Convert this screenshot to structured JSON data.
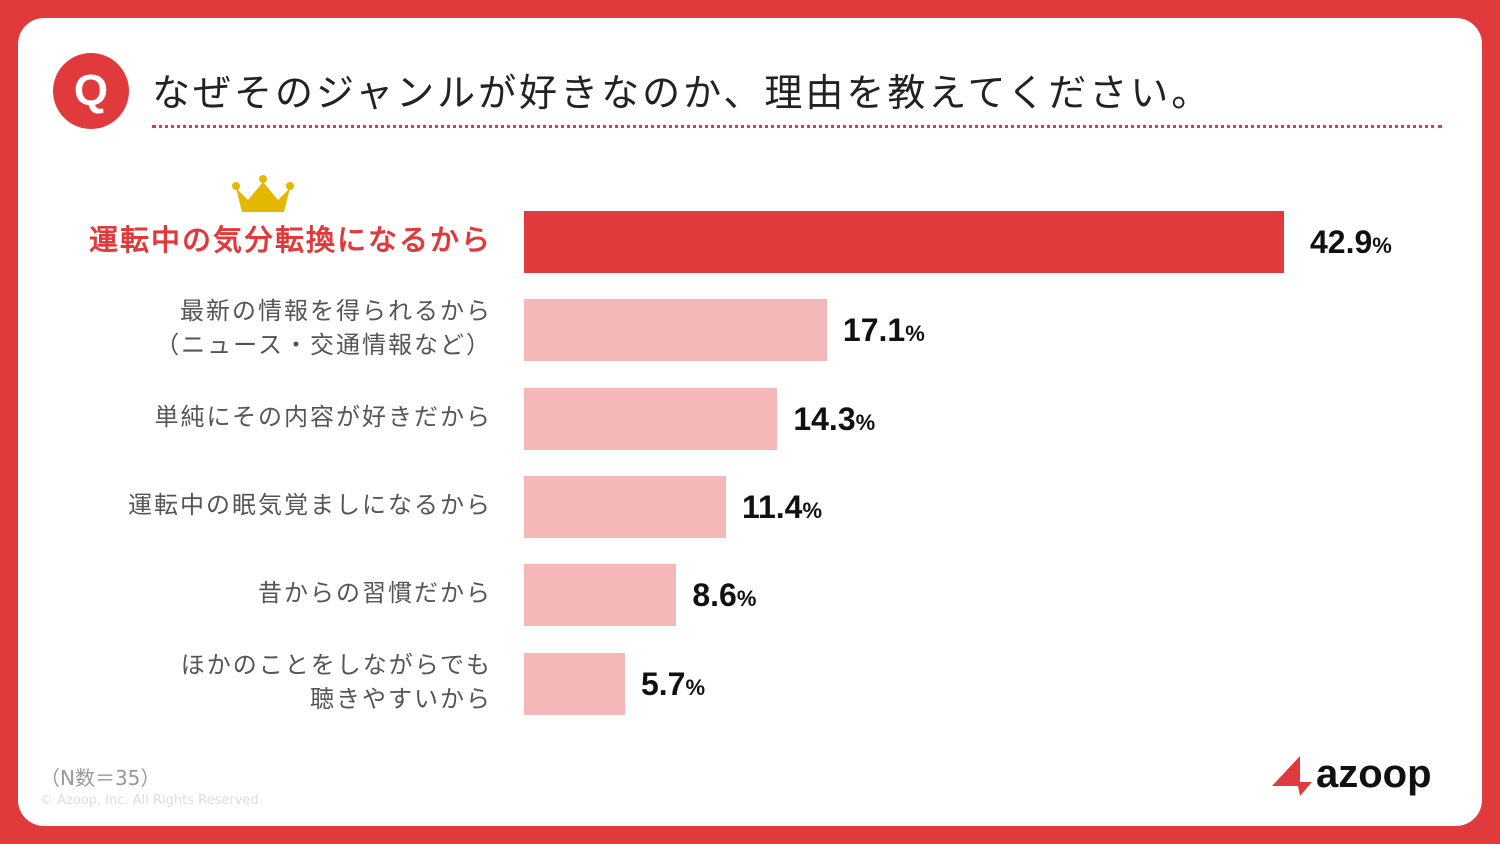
{
  "title": "なぜそのジャンルが好きなのか、理由を教えてください。",
  "q_icon": "Q",
  "chart_data": {
    "type": "bar",
    "orientation": "horizontal",
    "categories": [
      "運転中の気分転換になるから",
      "最新の情報を得られるから（ニュース・交通情報など）",
      "単純にその内容が好きだから",
      "運転中の眠気覚ましになるから",
      "昔からの習慣だから",
      "ほかのことをしながらでも聴きやすいから"
    ],
    "category_lines": [
      [
        "運転中の気分転換になるから"
      ],
      [
        "最新の情報を得られるから",
        "（ニュース・交通情報など）"
      ],
      [
        "単純にその内容が好きだから"
      ],
      [
        "運転中の眠気覚ましになるから"
      ],
      [
        "昔からの習慣だから"
      ],
      [
        "ほかのことをしながらでも",
        "聴きやすいから"
      ]
    ],
    "values": [
      42.9,
      17.1,
      14.3,
      11.4,
      8.6,
      5.7
    ],
    "unit": "%",
    "highlight_index": 0,
    "colors": {
      "highlight": "#e03a3c",
      "other": "#f4b8b8"
    },
    "grid": false
  },
  "footer": {
    "n": "（N数＝35）",
    "copyright": "© Azoop, Inc.  All Rights Reserved."
  },
  "logo": "azoop"
}
